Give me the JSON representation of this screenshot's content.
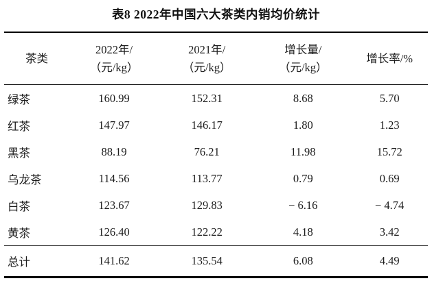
{
  "page": {
    "title": "表8 2022年中国六大茶类内销均价统计",
    "colors": {
      "background": "#ffffff",
      "text": "#1c1c1c",
      "rule": "#000000"
    }
  },
  "table": {
    "col_headers": [
      {
        "line1": "茶类",
        "line2": ""
      },
      {
        "line1": "2022年/",
        "line2": "（元/kg）"
      },
      {
        "line1": "2021年/",
        "line2": "（元/kg）"
      },
      {
        "line1": "增长量/",
        "line2": "（元/kg）"
      },
      {
        "line1": "增长率/%",
        "line2": ""
      }
    ],
    "rows": [
      {
        "category": "绿茶",
        "price_2022": "160.99",
        "price_2021": "152.31",
        "growth_amount": "8.68",
        "growth_rate": "5.70"
      },
      {
        "category": "红茶",
        "price_2022": "147.97",
        "price_2021": "146.17",
        "growth_amount": "1.80",
        "growth_rate": "1.23"
      },
      {
        "category": "黑茶",
        "price_2022": "88.19",
        "price_2021": "76.21",
        "growth_amount": "11.98",
        "growth_rate": "15.72"
      },
      {
        "category": "乌龙茶",
        "price_2022": "114.56",
        "price_2021": "113.77",
        "growth_amount": "0.79",
        "growth_rate": "0.69"
      },
      {
        "category": "白茶",
        "price_2022": "123.67",
        "price_2021": "129.83",
        "growth_amount": "− 6.16",
        "growth_rate": "− 4.74"
      },
      {
        "category": "黄茶",
        "price_2022": "126.40",
        "price_2021": "122.22",
        "growth_amount": "4.18",
        "growth_rate": "3.42"
      }
    ],
    "total_row": {
      "category": "总计",
      "price_2022": "141.62",
      "price_2021": "135.54",
      "growth_amount": "6.08",
      "growth_rate": "4.49"
    }
  }
}
